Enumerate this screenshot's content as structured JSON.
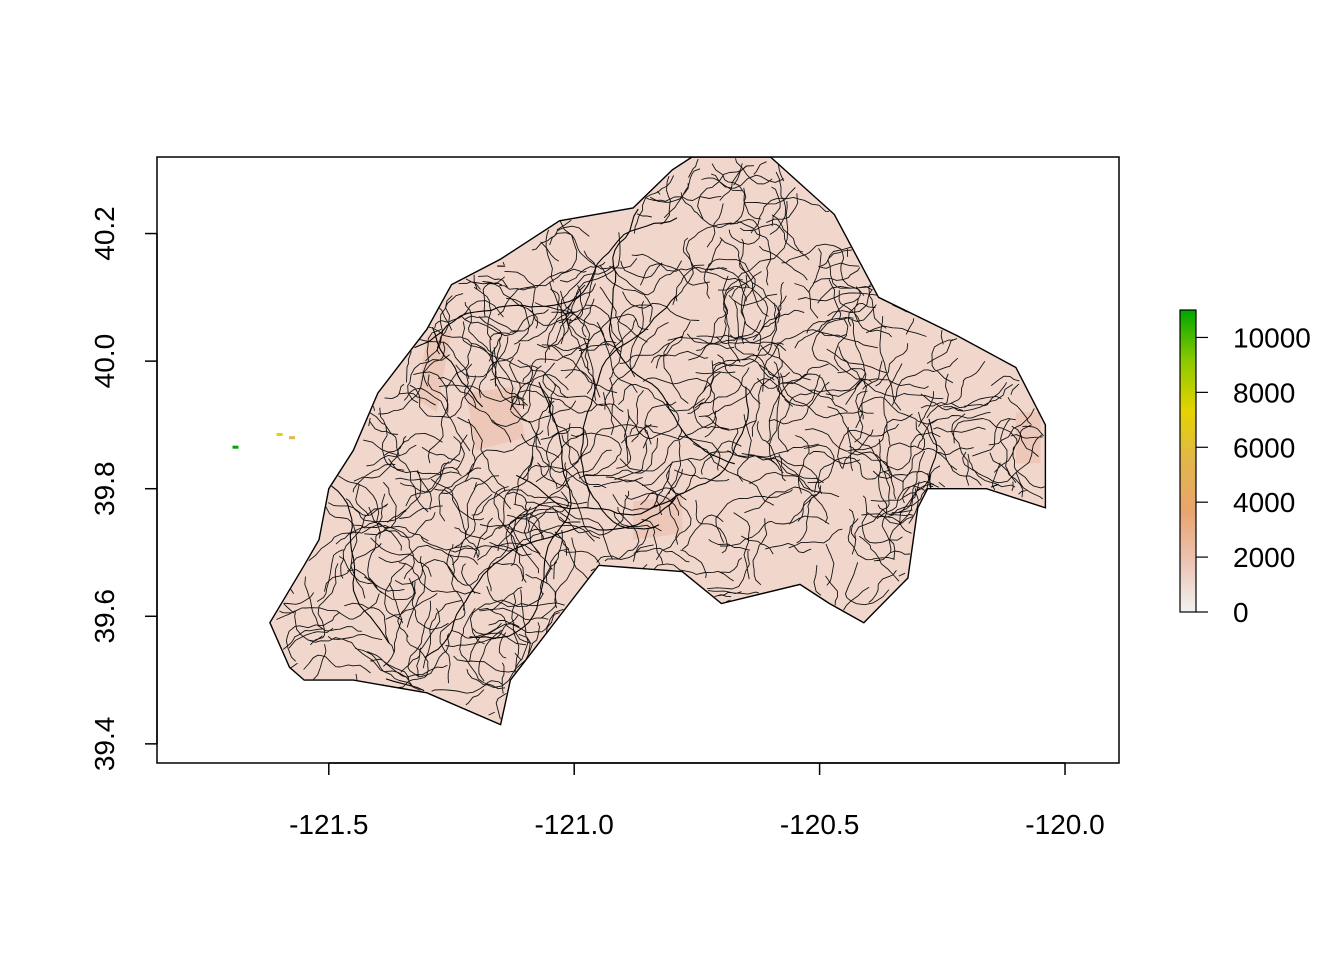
{
  "chart_data": {
    "type": "heatmap",
    "title": "",
    "xlabel": "",
    "ylabel": "",
    "xlim": [
      -121.85,
      -119.89
    ],
    "ylim": [
      39.37,
      40.32
    ],
    "x_ticks": [
      {
        "value": -121.5,
        "label": "-121.5"
      },
      {
        "value": -121.0,
        "label": "-121.0"
      },
      {
        "value": -120.5,
        "label": "-120.5"
      },
      {
        "value": -120.0,
        "label": "-120.0"
      }
    ],
    "y_ticks": [
      {
        "value": 39.4,
        "label": "39.4"
      },
      {
        "value": 39.6,
        "label": "39.6"
      },
      {
        "value": 39.8,
        "label": "39.8"
      },
      {
        "value": 40.0,
        "label": "40.0"
      },
      {
        "value": 40.2,
        "label": "40.2"
      }
    ],
    "grid": false,
    "legend": {
      "type": "colorbar",
      "placement": "right",
      "range": [
        0,
        11000
      ],
      "ticks": [
        {
          "value": 0,
          "label": "0"
        },
        {
          "value": 2000,
          "label": "2000"
        },
        {
          "value": 4000,
          "label": "4000"
        },
        {
          "value": 6000,
          "label": "6000"
        },
        {
          "value": 8000,
          "label": "8000"
        },
        {
          "value": 10000,
          "label": "10000"
        }
      ],
      "colors": [
        "#f2f2f2",
        "#ecc4b4",
        "#e9a470",
        "#e2b64a",
        "#e5d300",
        "#8ac900",
        "#00a600"
      ]
    },
    "boundary_lonlat": [
      [
        -120.76,
        40.32
      ],
      [
        -120.6,
        40.32
      ],
      [
        -120.47,
        40.23
      ],
      [
        -120.38,
        40.1
      ],
      [
        -120.22,
        40.04
      ],
      [
        -120.1,
        39.99
      ],
      [
        -120.04,
        39.9
      ],
      [
        -120.04,
        39.77
      ],
      [
        -120.16,
        39.8
      ],
      [
        -120.28,
        39.8
      ],
      [
        -120.3,
        39.77
      ],
      [
        -120.32,
        39.66
      ],
      [
        -120.41,
        39.59
      ],
      [
        -120.48,
        39.62
      ],
      [
        -120.54,
        39.65
      ],
      [
        -120.7,
        39.62
      ],
      [
        -120.78,
        39.67
      ],
      [
        -120.95,
        39.68
      ],
      [
        -121.05,
        39.58
      ],
      [
        -121.13,
        39.5
      ],
      [
        -121.15,
        39.43
      ],
      [
        -121.3,
        39.48
      ],
      [
        -121.45,
        39.5
      ],
      [
        -121.55,
        39.5
      ],
      [
        -121.58,
        39.52
      ],
      [
        -121.62,
        39.59
      ],
      [
        -121.55,
        39.68
      ],
      [
        -121.52,
        39.72
      ],
      [
        -121.5,
        39.8
      ],
      [
        -121.45,
        39.86
      ],
      [
        -121.4,
        39.95
      ],
      [
        -121.3,
        40.05
      ],
      [
        -121.25,
        40.12
      ],
      [
        -121.15,
        40.16
      ],
      [
        -121.03,
        40.22
      ],
      [
        -120.88,
        40.24
      ],
      [
        -120.8,
        40.3
      ]
    ],
    "raster_patches_lonlat": [
      {
        "points": [
          [
            -121.22,
            39.95
          ],
          [
            -121.12,
            39.96
          ],
          [
            -121.1,
            39.88
          ],
          [
            -121.2,
            39.86
          ]
        ],
        "value": 2500
      },
      {
        "points": [
          [
            -121.3,
            40.04
          ],
          [
            -121.25,
            40.05
          ],
          [
            -121.28,
            39.92
          ],
          [
            -121.32,
            39.94
          ]
        ],
        "value": 2200
      },
      {
        "points": [
          [
            -120.1,
            39.92
          ],
          [
            -120.05,
            39.92
          ],
          [
            -120.05,
            39.84
          ],
          [
            -120.1,
            39.84
          ]
        ],
        "value": 2000
      },
      {
        "points": [
          [
            -120.88,
            39.78
          ],
          [
            -120.78,
            39.79
          ],
          [
            -120.78,
            39.73
          ],
          [
            -120.88,
            39.72
          ]
        ],
        "value": 1500
      }
    ],
    "outlier_cells_lonlat": [
      {
        "lon": -121.69,
        "lat": 39.865,
        "value": 10500
      },
      {
        "lon": -121.6,
        "lat": 39.885,
        "value": 6500
      },
      {
        "lon": -121.575,
        "lat": 39.88,
        "value": 5500
      }
    ]
  }
}
